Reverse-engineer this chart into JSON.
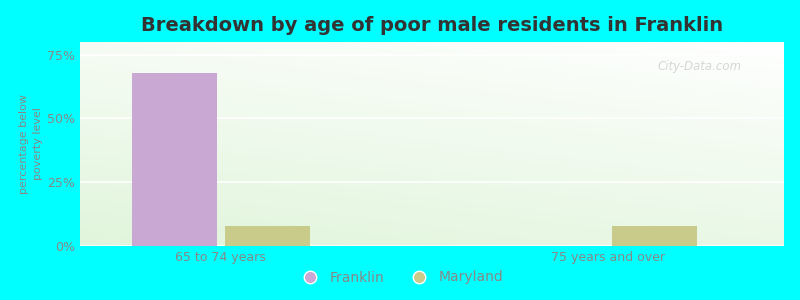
{
  "title": "Breakdown by age of poor male residents in Franklin",
  "ylabel": "percentage below\npoverty level",
  "categories": [
    "65 to 74 years",
    "75 years and over"
  ],
  "franklin_values": [
    68.0,
    0.0
  ],
  "maryland_values": [
    8.0,
    8.0
  ],
  "franklin_color": "#c9a8d4",
  "maryland_color": "#c8cb8a",
  "background_color": "#00ffff",
  "ylim": [
    0,
    80
  ],
  "yticks": [
    0,
    25,
    50,
    75
  ],
  "ytick_labels": [
    "0%",
    "25%",
    "50%",
    "75%"
  ],
  "bar_width": 0.12,
  "x_positions": [
    0.2,
    0.75
  ],
  "xlim": [
    0.0,
    1.0
  ],
  "title_fontsize": 14,
  "axis_label_fontsize": 8,
  "tick_fontsize": 9,
  "watermark": "City-Data.com",
  "grid_color": "#ffffff",
  "legend_labels": [
    "Franklin",
    "Maryland"
  ],
  "tick_color": "#888888",
  "title_color": "#333333"
}
